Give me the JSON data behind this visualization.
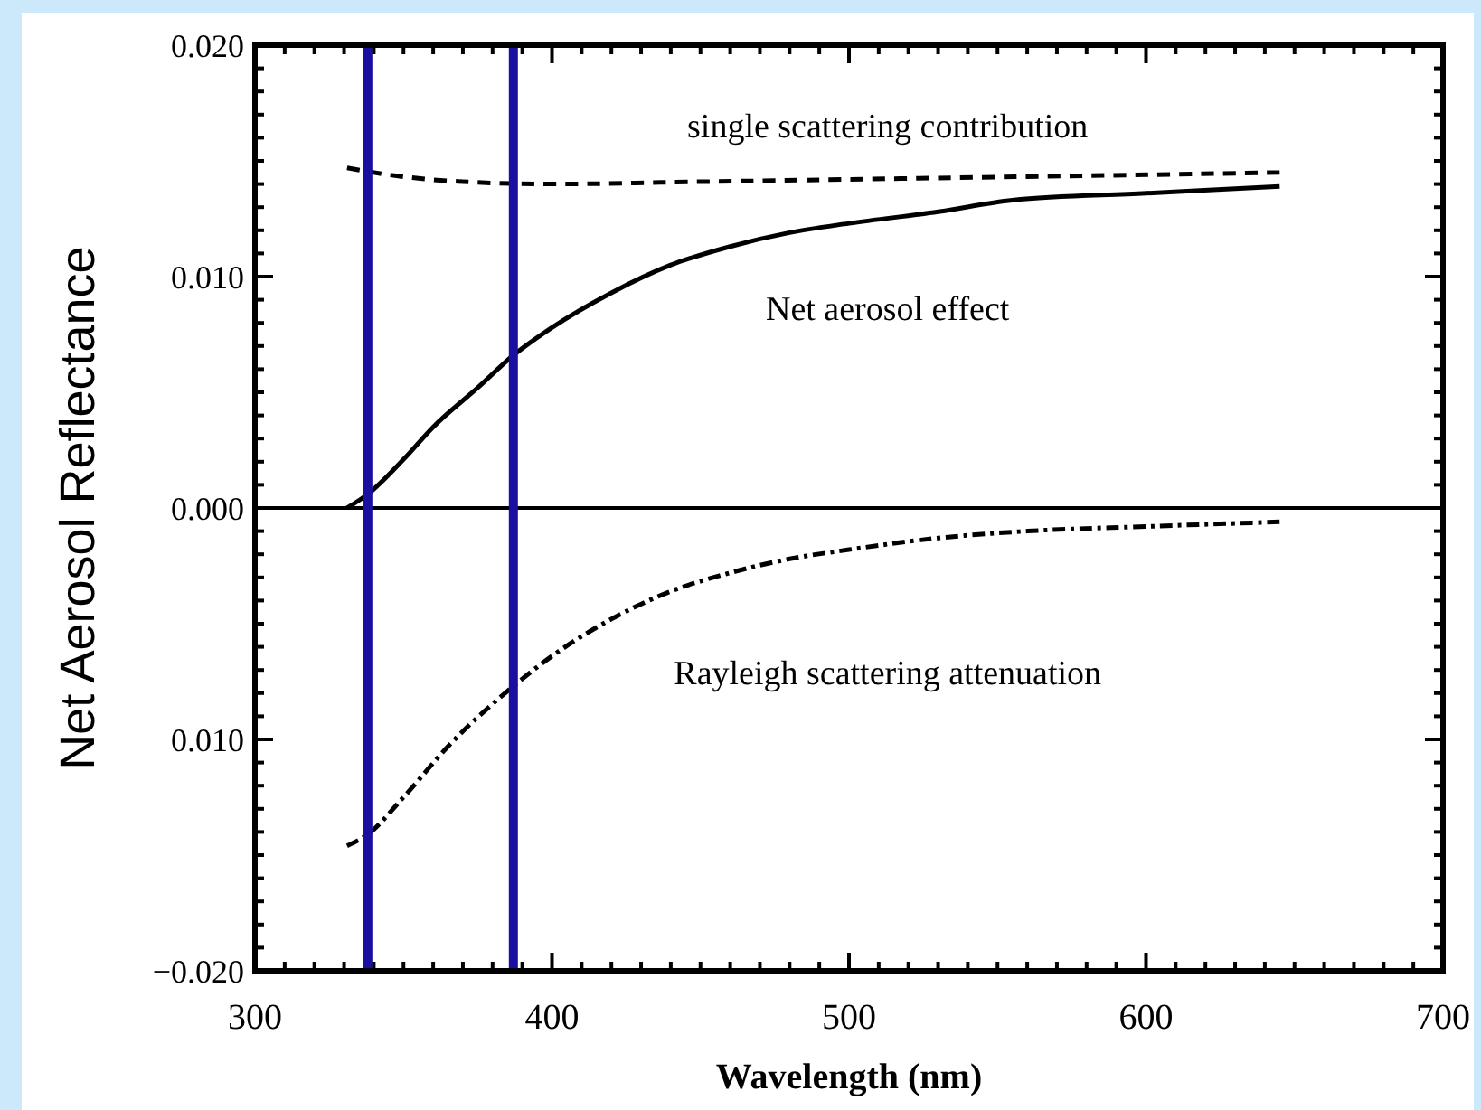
{
  "chart_data": {
    "type": "line",
    "xlabel": "Wavelength (nm)",
    "ylabel": "Net Aerosol Reflectance",
    "xlim": [
      300,
      700
    ],
    "ylim": [
      -0.02,
      0.02
    ],
    "xticks": [
      300,
      {
        "value": 310,
        "label": null
      },
      {
        "value": 320,
        "label": null
      },
      {
        "value": 330,
        "label": null
      },
      {
        "value": 340,
        "label": null
      },
      {
        "value": 350,
        "label": null
      },
      {
        "value": 360,
        "label": null
      },
      {
        "value": 370,
        "label": null
      },
      {
        "value": 380,
        "label": null
      },
      {
        "value": 390,
        "label": null
      },
      400,
      {
        "value": 410,
        "label": null
      },
      {
        "value": 420,
        "label": null
      },
      {
        "value": 430,
        "label": null
      },
      {
        "value": 440,
        "label": null
      },
      {
        "value": 450,
        "label": null
      },
      {
        "value": 460,
        "label": null
      },
      {
        "value": 470,
        "label": null
      },
      {
        "value": 480,
        "label": null
      },
      {
        "value": 490,
        "label": null
      },
      500,
      {
        "value": 510,
        "label": null
      },
      {
        "value": 520,
        "label": null
      },
      {
        "value": 530,
        "label": null
      },
      {
        "value": 540,
        "label": null
      },
      {
        "value": 550,
        "label": null
      },
      {
        "value": 560,
        "label": null
      },
      {
        "value": 570,
        "label": null
      },
      {
        "value": 580,
        "label": null
      },
      {
        "value": 590,
        "label": null
      },
      600,
      {
        "value": 610,
        "label": null
      },
      {
        "value": 620,
        "label": null
      },
      {
        "value": 630,
        "label": null
      },
      {
        "value": 640,
        "label": null
      },
      {
        "value": 650,
        "label": null
      },
      {
        "value": 660,
        "label": null
      },
      {
        "value": 670,
        "label": null
      },
      {
        "value": 680,
        "label": null
      },
      {
        "value": 690,
        "label": null
      },
      700
    ],
    "yticks": [
      {
        "value": -0.02,
        "label": "−0.020"
      },
      {
        "value": -0.019,
        "label": null
      },
      {
        "value": -0.018,
        "label": null
      },
      {
        "value": -0.017,
        "label": null
      },
      {
        "value": -0.016,
        "label": null
      },
      {
        "value": -0.015,
        "label": null
      },
      {
        "value": -0.014,
        "label": null
      },
      {
        "value": -0.013,
        "label": null
      },
      {
        "value": -0.012,
        "label": null
      },
      {
        "value": -0.011,
        "label": null
      },
      {
        "value": -0.01,
        "label": "0.010"
      },
      {
        "value": -0.009,
        "label": null
      },
      {
        "value": -0.008,
        "label": null
      },
      {
        "value": -0.007,
        "label": null
      },
      {
        "value": -0.006,
        "label": null
      },
      {
        "value": -0.005,
        "label": null
      },
      {
        "value": -0.004,
        "label": null
      },
      {
        "value": -0.003,
        "label": null
      },
      {
        "value": -0.002,
        "label": null
      },
      {
        "value": -0.001,
        "label": null
      },
      {
        "value": 0,
        "label": "0.000"
      },
      {
        "value": 0.001,
        "label": null
      },
      {
        "value": 0.002,
        "label": null
      },
      {
        "value": 0.003,
        "label": null
      },
      {
        "value": 0.004,
        "label": null
      },
      {
        "value": 0.005,
        "label": null
      },
      {
        "value": 0.006,
        "label": null
      },
      {
        "value": 0.007,
        "label": null
      },
      {
        "value": 0.008,
        "label": null
      },
      {
        "value": 0.009,
        "label": null
      },
      {
        "value": 0.01,
        "label": "0.010"
      },
      {
        "value": 0.011,
        "label": null
      },
      {
        "value": 0.012,
        "label": null
      },
      {
        "value": 0.013,
        "label": null
      },
      {
        "value": 0.014,
        "label": null
      },
      {
        "value": 0.015,
        "label": null
      },
      {
        "value": 0.016,
        "label": null
      },
      {
        "value": 0.017,
        "label": null
      },
      {
        "value": 0.018,
        "label": null
      },
      {
        "value": 0.019,
        "label": null
      },
      {
        "value": 0.02,
        "label": "0.020"
      }
    ],
    "grid": false,
    "marker": "none",
    "series": [
      {
        "name": "single scattering contribution",
        "color": "#000000",
        "line_style": "dashed",
        "x": [
          331,
          345,
          370,
          400,
          450,
          500,
          550,
          600,
          645
        ],
        "values": [
          0.0147,
          0.0144,
          0.0141,
          0.014,
          0.0141,
          0.0142,
          0.0143,
          0.0144,
          0.0145
        ]
      },
      {
        "name": "Net aerosol effect",
        "color": "#000000",
        "line_style": "solid",
        "x": [
          331,
          338,
          350,
          360,
          375,
          387,
          400,
          420,
          440,
          460,
          480,
          500,
          530,
          555,
          600,
          645
        ],
        "values": [
          0.0,
          0.0006,
          0.0021,
          0.0035,
          0.0052,
          0.0066,
          0.0078,
          0.0093,
          0.0105,
          0.0113,
          0.0119,
          0.0123,
          0.0128,
          0.0133,
          0.0136,
          0.0139
        ]
      },
      {
        "name": "Rayleigh scattering attenuation",
        "color": "#000000",
        "line_style": "dashdot",
        "x": [
          331,
          338,
          350,
          365,
          387,
          400,
          420,
          440,
          460,
          480,
          500,
          530,
          560,
          600,
          645
        ],
        "values": [
          -0.0146,
          -0.0141,
          -0.0125,
          -0.0103,
          -0.0077,
          -0.0064,
          -0.0048,
          -0.0036,
          -0.0028,
          -0.0022,
          -0.0018,
          -0.0013,
          -0.001,
          -0.0008,
          -0.0006
        ]
      }
    ],
    "ref_lines": [
      {
        "axis": "y",
        "value": 0,
        "color": "#000000"
      },
      {
        "axis": "x",
        "value": 338,
        "color": "#1a0fa0"
      },
      {
        "axis": "x",
        "value": 387,
        "color": "#1a0fa0"
      }
    ]
  }
}
